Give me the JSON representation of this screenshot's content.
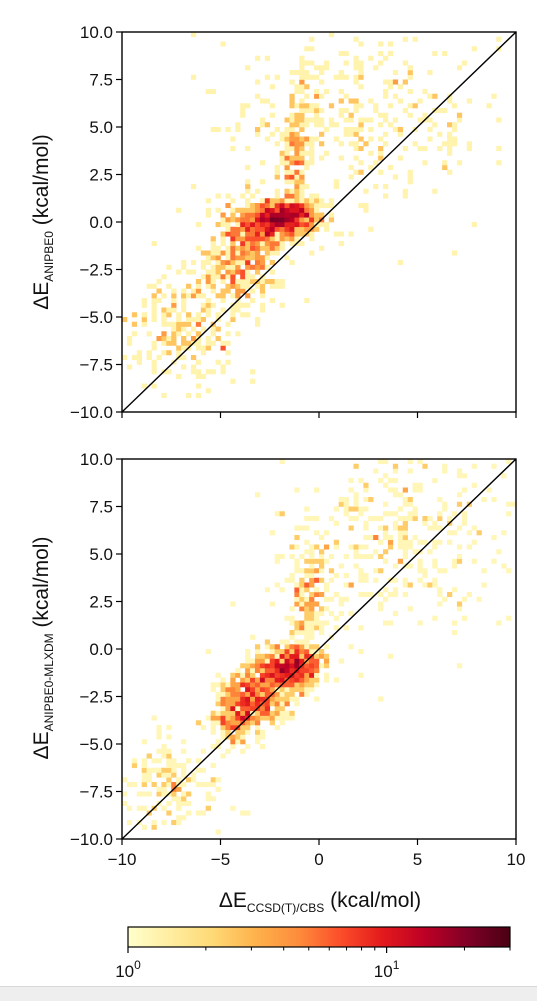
{
  "chart_data": [
    {
      "type": "heatmap",
      "subtype": "2d-histogram-density",
      "ylabel_main": "ΔE",
      "ylabel_sub": "ANIPBE0",
      "ylabel_unit": " (kcal/mol)",
      "xlim": [
        -10,
        10
      ],
      "ylim": [
        -10,
        10
      ],
      "xticks": [
        -10,
        -5,
        0,
        5,
        10
      ],
      "yticks": [
        -10.0,
        -7.5,
        -5.0,
        -2.5,
        0.0,
        2.5,
        5.0,
        7.5,
        10.0
      ],
      "ytick_labels": [
        "−10.0",
        "−7.5",
        "−5.0",
        "−2.5",
        "0.0",
        "2.5",
        "5.0",
        "7.5",
        "10.0"
      ],
      "show_xtick_labels": false,
      "reference_line": "y = x",
      "density_clusters": [
        {
          "x": -1.6,
          "y": 0.3,
          "sx": 0.8,
          "sy": 0.45,
          "peak": 22
        },
        {
          "x": -3.0,
          "y": -0.2,
          "sx": 0.9,
          "sy": 0.7,
          "peak": 9
        },
        {
          "x": -4.0,
          "y": -2.2,
          "sx": 1.0,
          "sy": 1.1,
          "peak": 5
        },
        {
          "x": -1.1,
          "y": 3.5,
          "sx": 0.4,
          "sy": 2.0,
          "peak": 4
        },
        {
          "x": -6.8,
          "y": -5.6,
          "sx": 1.5,
          "sy": 1.4,
          "peak": 2
        },
        {
          "x": 2.0,
          "y": 5.5,
          "sx": 3.5,
          "sy": 2.5,
          "peak": 0.7
        }
      ],
      "n_points": 1900
    },
    {
      "type": "heatmap",
      "subtype": "2d-histogram-density",
      "ylabel_main": "ΔE",
      "ylabel_sub": "ANIPBE0-MLXDM",
      "ylabel_unit": " (kcal/mol)",
      "xlabel_main": "ΔE",
      "xlabel_sub": "CCSD(T)/CBS",
      "xlabel_unit": " (kcal/mol)",
      "xlim": [
        -10,
        10
      ],
      "ylim": [
        -10,
        10
      ],
      "xticks": [
        -10,
        -5,
        0,
        5,
        10
      ],
      "xtick_labels": [
        "−10",
        "−5",
        "0",
        "5",
        "10"
      ],
      "yticks": [
        -10.0,
        -7.5,
        -5.0,
        -2.5,
        0.0,
        2.5,
        5.0,
        7.5,
        10.0
      ],
      "ytick_labels": [
        "−10.0",
        "−7.5",
        "−5.0",
        "−2.5",
        "0.0",
        "2.5",
        "5.0",
        "7.5",
        "10.0"
      ],
      "show_xtick_labels": true,
      "reference_line": "y = x",
      "density_clusters": [
        {
          "x": -1.5,
          "y": -1.0,
          "sx": 0.8,
          "sy": 0.6,
          "peak": 18
        },
        {
          "x": -3.2,
          "y": -2.5,
          "sx": 0.9,
          "sy": 0.8,
          "peak": 9
        },
        {
          "x": -4.3,
          "y": -3.5,
          "sx": 0.7,
          "sy": 0.8,
          "peak": 6
        },
        {
          "x": -0.5,
          "y": 2.5,
          "sx": 0.6,
          "sy": 1.8,
          "peak": 3
        },
        {
          "x": -7.5,
          "y": -7.0,
          "sx": 1.4,
          "sy": 1.3,
          "peak": 1.5
        },
        {
          "x": 4.5,
          "y": 6.0,
          "sx": 3.0,
          "sy": 2.5,
          "peak": 0.8
        }
      ],
      "n_points": 1900
    }
  ],
  "colorbar": {
    "scale": "log",
    "range": [
      1,
      30
    ],
    "tick_labels": [
      {
        "value": 1,
        "base": "10",
        "exp": "0"
      },
      {
        "value": 10,
        "base": "10",
        "exp": "1"
      }
    ],
    "colors": [
      "#ffffcc",
      "#ffeda0",
      "#fed976",
      "#feb24c",
      "#fd8d3c",
      "#fc4e2a",
      "#e31a1c",
      "#bd0026",
      "#800026",
      "#4a0014"
    ]
  }
}
